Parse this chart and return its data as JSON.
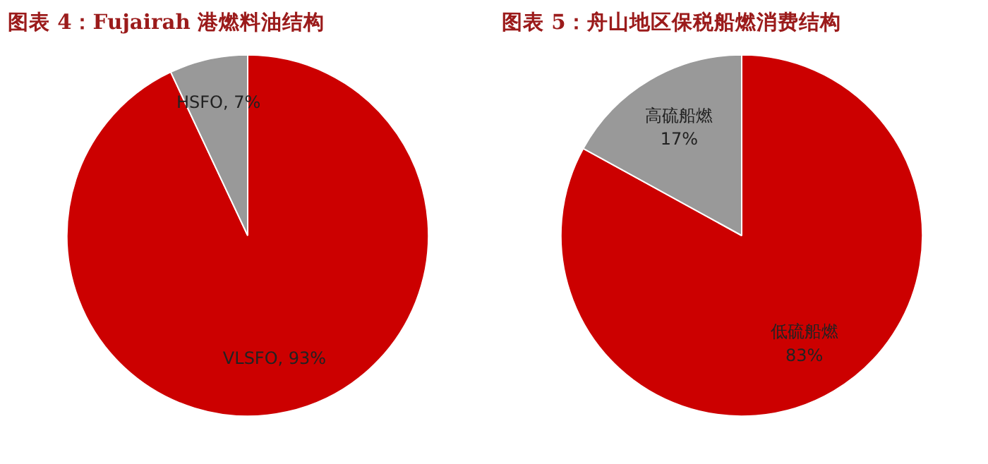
{
  "chart_data": [
    {
      "type": "pie",
      "title": "图表 4：Fujairah 港燃料油结构",
      "categories": [
        "VLSFO",
        "HSFO"
      ],
      "values": [
        93,
        7
      ],
      "colors": [
        "#cc0000",
        "#999999"
      ],
      "value_labels": [
        ", 93%",
        ", 7%"
      ],
      "legend": false
    },
    {
      "type": "pie",
      "title": "图表 5：舟山地区保税船燃消费结构",
      "categories": [
        "低硫船燃",
        "高硫船燃"
      ],
      "values": [
        83,
        17
      ],
      "colors": [
        "#cc0000",
        "#999999"
      ],
      "value_labels": [
        "83%",
        "17%"
      ],
      "legend": false
    }
  ]
}
